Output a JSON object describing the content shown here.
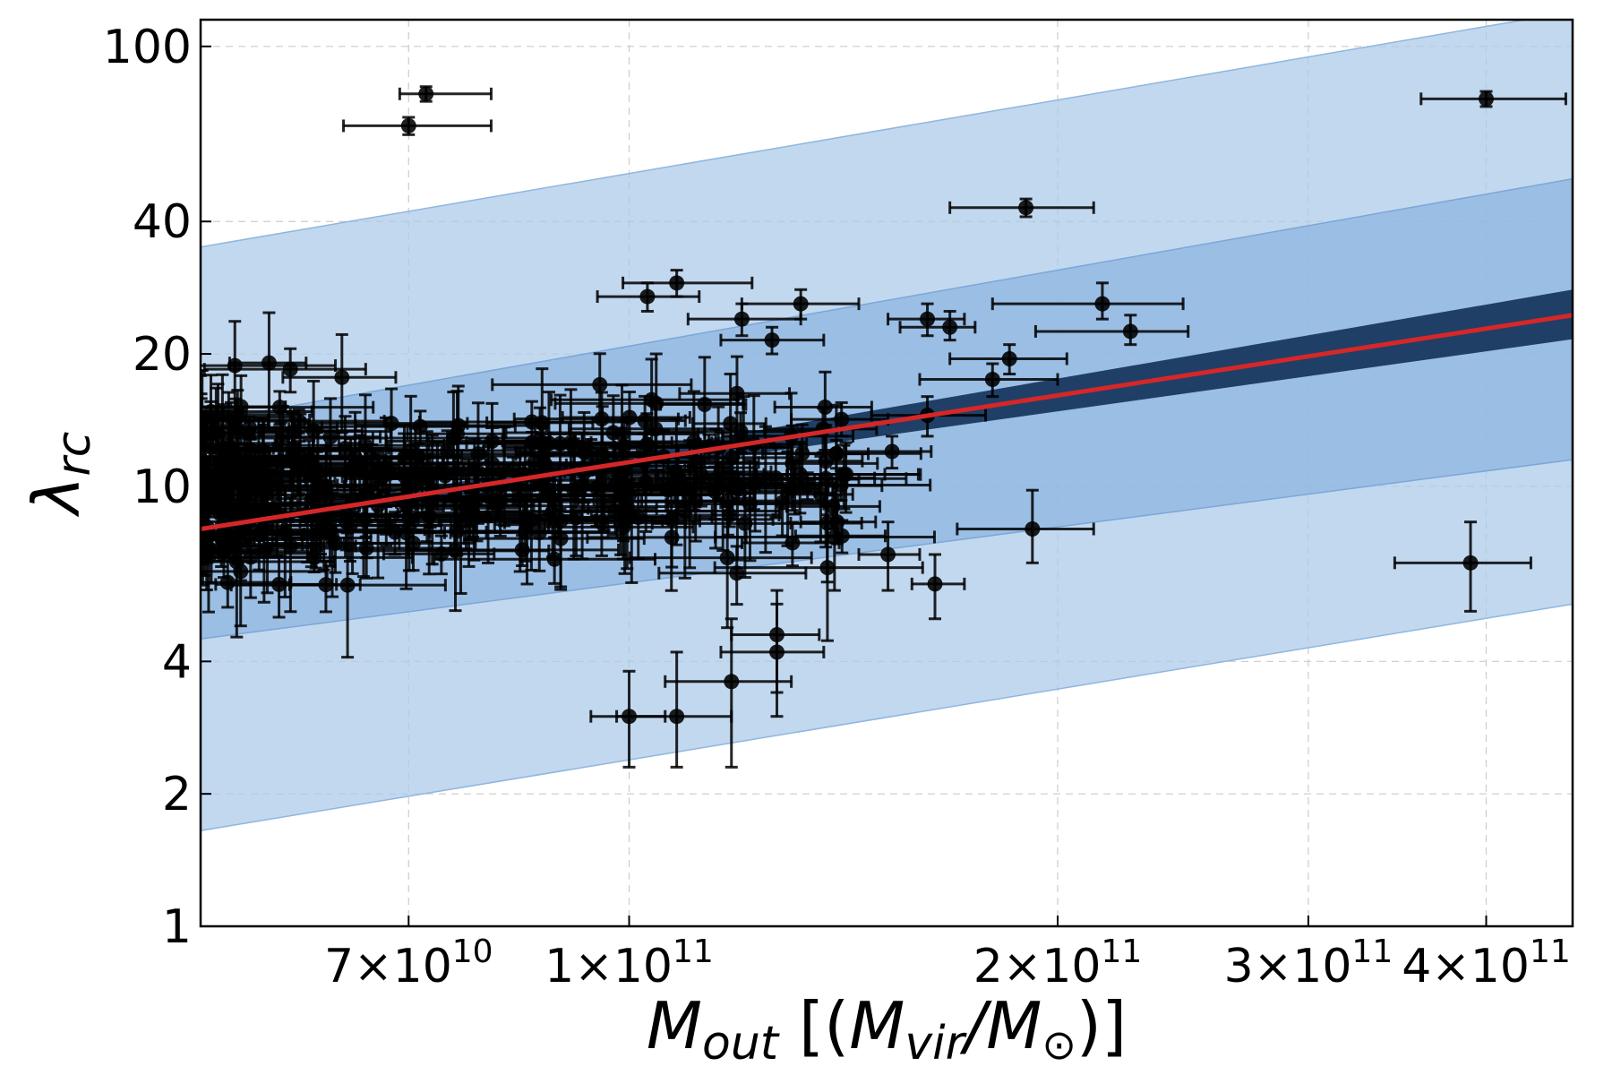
{
  "chart_data": {
    "type": "scatter",
    "xscale": "log",
    "yscale": "log",
    "xlim": [
      50000000000.0,
      460000000000.0
    ],
    "ylim": [
      1,
      115
    ],
    "grid": true,
    "xlabel": {
      "main": "M",
      "sub": "out",
      "rest_open": " [(",
      "main2": "M",
      "sub2": "vir",
      "slash": "/",
      "main3": "M",
      "sun": "⊙",
      "rest_close": ")]"
    },
    "ylabel": {
      "main": "λ",
      "sub": "rc"
    },
    "x_ticks": [
      {
        "value": 70000000000.0,
        "label": "7×10",
        "exp": "10"
      },
      {
        "value": 100000000000.0,
        "label": "1×10",
        "exp": "11"
      },
      {
        "value": 200000000000.0,
        "label": "2×10",
        "exp": "11"
      },
      {
        "value": 300000000000.0,
        "label": "3×10",
        "exp": "11"
      },
      {
        "value": 400000000000.0,
        "label": "4×10",
        "exp": "11"
      }
    ],
    "y_ticks": [
      {
        "value": 1,
        "label": "1"
      },
      {
        "value": 2,
        "label": "2"
      },
      {
        "value": 4,
        "label": "4"
      },
      {
        "value": 10,
        "label": "10"
      },
      {
        "value": 20,
        "label": "20"
      },
      {
        "value": 40,
        "label": "40"
      },
      {
        "value": 100,
        "label": "100"
      }
    ],
    "fit_line": {
      "name": "best fit",
      "color": "#d62728",
      "x": [
        50000000000.0,
        460000000000.0
      ],
      "y": [
        8.0,
        24.5
      ]
    },
    "inner_band": {
      "name": "1σ fit uncertainty",
      "color": "#1f3f66",
      "x": [
        50000000000.0,
        460000000000.0
      ],
      "lower": [
        7.9,
        21.6
      ],
      "upper": [
        8.1,
        28.0
      ]
    },
    "middle_band": {
      "name": "intrinsic scatter 1σ",
      "color": "#8ab4df",
      "x": [
        50000000000.0,
        460000000000.0
      ],
      "lower": [
        4.5,
        11.5
      ],
      "upper": [
        14.0,
        50.0
      ]
    },
    "outer_band": {
      "name": "intrinsic scatter 2σ",
      "color": "#aecbea",
      "x": [
        50000000000.0,
        460000000000.0
      ],
      "lower": [
        1.65,
        5.4
      ],
      "upper": [
        35.0,
        120.0
      ]
    },
    "highlight_points": [
      {
        "x": 72000000000.0,
        "y": 78,
        "xlo": 69000000000.0,
        "xhi": 80000000000.0,
        "ylo": 75,
        "yhi": 81
      },
      {
        "x": 70000000000.0,
        "y": 66,
        "xlo": 63000000000.0,
        "xhi": 80000000000.0,
        "ylo": 63,
        "yhi": 69
      },
      {
        "x": 400000000000.0,
        "y": 76,
        "xlo": 360000000000.0,
        "xhi": 455000000000.0,
        "ylo": 73,
        "yhi": 79
      },
      {
        "x": 190000000000.0,
        "y": 43,
        "xlo": 168000000000.0,
        "xhi": 212000000000.0,
        "ylo": 41,
        "yhi": 45
      },
      {
        "x": 215000000000.0,
        "y": 26,
        "xlo": 180000000000.0,
        "xhi": 245000000000.0,
        "ylo": 24,
        "yhi": 29
      },
      {
        "x": 225000000000.0,
        "y": 22.5,
        "xlo": 193000000000.0,
        "xhi": 247000000000.0,
        "ylo": 21,
        "yhi": 24.5
      },
      {
        "x": 192000000000.0,
        "y": 8.0,
        "xlo": 170000000000.0,
        "xhi": 212000000000.0,
        "ylo": 6.7,
        "yhi": 9.8
      },
      {
        "x": 390000000000.0,
        "y": 6.7,
        "xlo": 345000000000.0,
        "xhi": 430000000000.0,
        "ylo": 5.2,
        "yhi": 8.3
      },
      {
        "x": 162000000000.0,
        "y": 24,
        "xlo": 152000000000.0,
        "xhi": 172000000000.0,
        "ylo": 22,
        "yhi": 26
      },
      {
        "x": 168000000000.0,
        "y": 23,
        "xlo": 155000000000.0,
        "xhi": 175000000000.0,
        "ylo": 21.5,
        "yhi": 25
      },
      {
        "x": 162000000000.0,
        "y": 14.5,
        "xlo": 148000000000.0,
        "xhi": 178000000000.0,
        "ylo": 13,
        "yhi": 16
      },
      {
        "x": 164000000000.0,
        "y": 6.0,
        "xlo": 158000000000.0,
        "xhi": 172000000000.0,
        "ylo": 5.0,
        "yhi": 7.0
      },
      {
        "x": 180000000000.0,
        "y": 17.5,
        "xlo": 160000000000.0,
        "xhi": 200000000000.0,
        "ylo": 16,
        "yhi": 19
      },
      {
        "x": 185000000000.0,
        "y": 19.5,
        "xlo": 168000000000.0,
        "xhi": 203000000000.0,
        "ylo": 18,
        "yhi": 21
      },
      {
        "x": 108000000000.0,
        "y": 29,
        "xlo": 99000000000.0,
        "xhi": 122000000000.0,
        "ylo": 27,
        "yhi": 31
      },
      {
        "x": 103000000000.0,
        "y": 27,
        "xlo": 95000000000.0,
        "xhi": 112000000000.0,
        "ylo": 25,
        "yhi": 29
      },
      {
        "x": 132000000000.0,
        "y": 26,
        "xlo": 120000000000.0,
        "xhi": 145000000000.0,
        "ylo": 24,
        "yhi": 28
      },
      {
        "x": 120000000000.0,
        "y": 24,
        "xlo": 110000000000.0,
        "xhi": 132000000000.0,
        "ylo": 22,
        "yhi": 26
      },
      {
        "x": 126000000000.0,
        "y": 21.5,
        "xlo": 116000000000.0,
        "xhi": 137000000000.0,
        "ylo": 20,
        "yhi": 23
      },
      {
        "x": 153000000000.0,
        "y": 12,
        "xlo": 142000000000.0,
        "xhi": 163000000000.0,
        "ylo": 11,
        "yhi": 13
      },
      {
        "x": 152000000000.0,
        "y": 7.0,
        "xlo": 145000000000.0,
        "xhi": 160000000000.0,
        "ylo": 5.8,
        "yhi": 8.3
      },
      {
        "x": 127000000000.0,
        "y": 4.6,
        "xlo": 118000000000.0,
        "xhi": 136000000000.0,
        "ylo": 3.4,
        "yhi": 5.8
      },
      {
        "x": 127000000000.0,
        "y": 4.2,
        "xlo": 116000000000.0,
        "xhi": 137000000000.0,
        "ylo": 3.0,
        "yhi": 5.4
      },
      {
        "x": 118000000000.0,
        "y": 3.6,
        "xlo": 106000000000.0,
        "xhi": 130000000000.0,
        "ylo": 2.3,
        "yhi": 5.0
      },
      {
        "x": 108000000000.0,
        "y": 3.0,
        "xlo": 98000000000.0,
        "xhi": 118000000000.0,
        "ylo": 2.3,
        "yhi": 4.2
      },
      {
        "x": 100000000000.0,
        "y": 3.0,
        "xlo": 94000000000.0,
        "xhi": 106000000000.0,
        "ylo": 2.3,
        "yhi": 3.8
      },
      {
        "x": 139000000000.0,
        "y": 9.0,
        "xlo": 129000000000.0,
        "xhi": 150000000000.0,
        "ylo": 8.0,
        "yhi": 10.0
      },
      {
        "x": 140000000000.0,
        "y": 8.3,
        "xlo": 132000000000.0,
        "xhi": 149000000000.0,
        "ylo": 7.4,
        "yhi": 9.3
      },
      {
        "x": 141000000000.0,
        "y": 14.2,
        "xlo": 130000000000.0,
        "xhi": 152000000000.0,
        "ylo": 13,
        "yhi": 15.5
      }
    ],
    "cluster": {
      "x_range": [
        50000000000.0,
        142000000000.0
      ],
      "y_range": [
        3.0,
        35
      ],
      "count": 330,
      "seed": 42
    }
  }
}
